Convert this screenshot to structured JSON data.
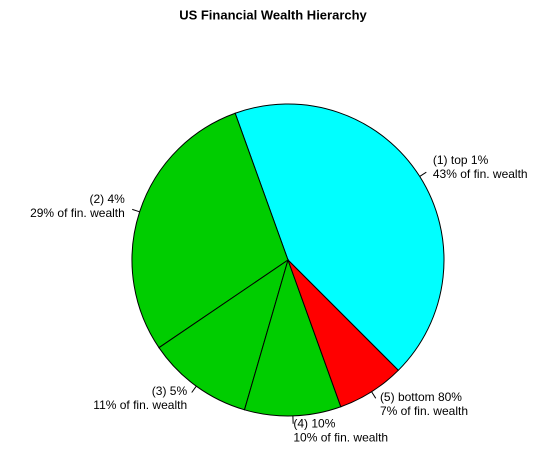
{
  "chart_data": {
    "type": "pie",
    "title": "US Financial Wealth Hierarchy",
    "categories": [
      "(1) top 1%",
      "(2) 4%",
      "(3) 5%",
      "(4) 10%",
      "(5) bottom 80%"
    ],
    "values": [
      43,
      29,
      11,
      10,
      7
    ],
    "value_labels": [
      "43% of fin. wealth",
      "29% of fin. wealth",
      "11% of fin. wealth",
      "10% of fin. wealth",
      "7% of fin. wealth"
    ],
    "colors": [
      "#00ffff",
      "#00cd00",
      "#00cd00",
      "#00cd00",
      "#ff0000"
    ]
  }
}
